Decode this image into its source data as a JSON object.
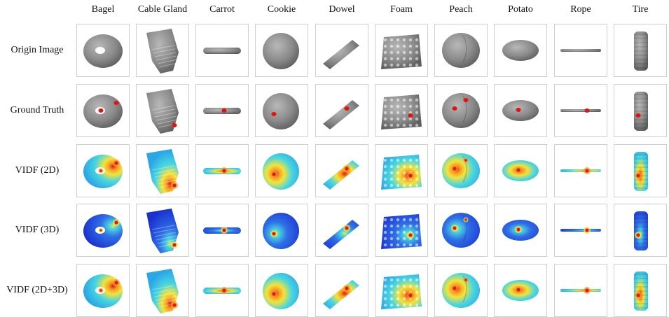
{
  "columns": [
    "Bagel",
    "Cable Gland",
    "Carrot",
    "Cookie",
    "Dowel",
    "Foam",
    "Peach",
    "Potato",
    "Rope",
    "Tire"
  ],
  "rows": [
    {
      "label": "Origin Image",
      "style": "gray"
    },
    {
      "label": "Ground Truth",
      "style": "gt"
    },
    {
      "label": "VIDF (2D)",
      "style": "heat2d"
    },
    {
      "label": "VIDF (3D)",
      "style": "heat3d"
    },
    {
      "label": "VIDF (2D+3D)",
      "style": "heatmix"
    }
  ],
  "colors": {
    "gray_fill": "#8a8a8a",
    "gray_dark": "#5e5e5e",
    "gray_light": "#b8b8b8",
    "defect_red": "#e3120b",
    "heat_cyan": "#49d6e0",
    "heat_deep_blue": "#1a2fd0",
    "heat_yellow": "#f3e33a",
    "heat_red": "#e0181b",
    "heat_orange": "#f59a23",
    "grid_border": "#cfcfcf"
  }
}
